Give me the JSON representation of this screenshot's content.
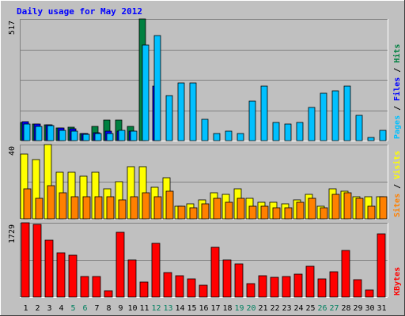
{
  "chart_data": {
    "type": "bar",
    "title": "Daily usage for May 2012",
    "categories": [
      "1",
      "2",
      "3",
      "4",
      "5",
      "6",
      "7",
      "8",
      "9",
      "10",
      "11",
      "12",
      "13",
      "14",
      "15",
      "16",
      "17",
      "18",
      "19",
      "20",
      "21",
      "22",
      "23",
      "24",
      "25",
      "26",
      "27",
      "28",
      "29",
      "30",
      "31"
    ],
    "weekend_days": [
      "5",
      "6",
      "12",
      "13",
      "19",
      "20",
      "26",
      "27"
    ],
    "panels": [
      {
        "id": "hits-files-pages",
        "max_label": "517",
        "ylim": [
          0,
          517
        ],
        "legend": [
          "Pages",
          "Files",
          "Hits"
        ],
        "series": [
          {
            "name": "Hits",
            "color": "#008040",
            "values": [
              77,
              70,
              67,
              55,
              57,
              30,
              62,
              87,
              87,
              62,
              517,
              0,
              0,
              0,
              0,
              0,
              0,
              0,
              0,
              0,
              0,
              0,
              0,
              0,
              0,
              0,
              0,
              0,
              0,
              0,
              0
            ]
          },
          {
            "name": "Files",
            "color": "#0000ff",
            "values": [
              79,
              70,
              67,
              53,
              50,
              30,
              35,
              40,
              40,
              40,
              0,
              230,
              0,
              0,
              0,
              0,
              0,
              0,
              0,
              0,
              0,
              0,
              0,
              0,
              0,
              0,
              0,
              0,
              0,
              0,
              0
            ]
          },
          {
            "name": "Pages",
            "color": "#00c0ff",
            "values": [
              69,
              60,
              63,
              45,
              40,
              27,
              30,
              30,
              42,
              40,
              405,
              447,
              190,
              245,
              245,
              90,
              30,
              40,
              30,
              167,
              233,
              77,
              70,
              77,
              140,
              200,
              210,
              230,
              107,
              15,
              43
            ]
          }
        ]
      },
      {
        "id": "visits-sites",
        "max_label": "40",
        "ylim": [
          0,
          40
        ],
        "legend": [
          "Sites",
          "Visits"
        ],
        "series": [
          {
            "name": "Visits",
            "color": "#ffff00",
            "values": [
              35,
              32,
              40,
              25,
              25,
              23,
              25,
              16,
              20,
              28,
              28,
              17,
              22,
              7,
              8,
              10,
              14,
              13,
              16,
              11,
              9,
              9,
              8,
              10,
              13,
              7,
              16,
              15,
              12,
              12,
              12
            ]
          },
          {
            "name": "Sites",
            "color": "#ff8000",
            "values": [
              16,
              11,
              18,
              14,
              12,
              12,
              12,
              12,
              10,
              12,
              14,
              12,
              15,
              7,
              6,
              8,
              11,
              9,
              11,
              7,
              7,
              6,
              6,
              9,
              11,
              6,
              13,
              14,
              11,
              7,
              12
            ]
          }
        ]
      },
      {
        "id": "kbytes",
        "max_label": "1729",
        "ylim": [
          0,
          1729
        ],
        "legend": [
          "KBytes"
        ],
        "series": [
          {
            "name": "KBytes",
            "color": "#ff0000",
            "values": [
              1729,
              1700,
              1330,
              1030,
              980,
              470,
              470,
              150,
              1500,
              860,
              350,
              1250,
              570,
              500,
              420,
              280,
              1150,
              860,
              780,
              320,
              500,
              460,
              480,
              540,
              710,
              430,
              580,
              1080,
              400,
              170,
              1480
            ]
          }
        ]
      }
    ]
  }
}
